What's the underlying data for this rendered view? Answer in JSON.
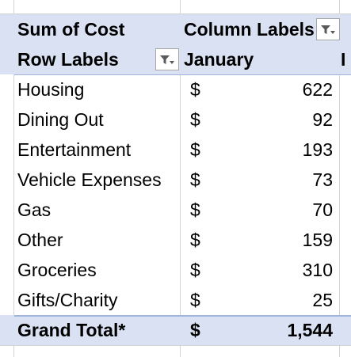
{
  "pivot": {
    "measure_label": "Sum of Cost",
    "column_labels_header": "Column Labels",
    "row_labels_header": "Row Labels",
    "column_value": "January",
    "currency_symbol": "$",
    "rows": [
      {
        "label": "Housing",
        "value": "622"
      },
      {
        "label": "Dining Out",
        "value": "92"
      },
      {
        "label": "Entertainment",
        "value": "193"
      },
      {
        "label": "Vehicle Expenses",
        "value": "73"
      },
      {
        "label": "Gas",
        "value": "70"
      },
      {
        "label": "Other",
        "value": "159"
      },
      {
        "label": "Groceries",
        "value": "310"
      },
      {
        "label": "Gifts/Charity",
        "value": "25"
      }
    ],
    "grand_total_label": "Grand Total*",
    "grand_total_value": "1,544",
    "next_column_partial": "I"
  },
  "icons": {
    "column_filter": "filter-dropdown-icon",
    "row_filter": "filter-dropdown-icon"
  },
  "colors": {
    "header_fill": "#d9e1f2",
    "grand_total_fill": "#d9e1f2"
  }
}
